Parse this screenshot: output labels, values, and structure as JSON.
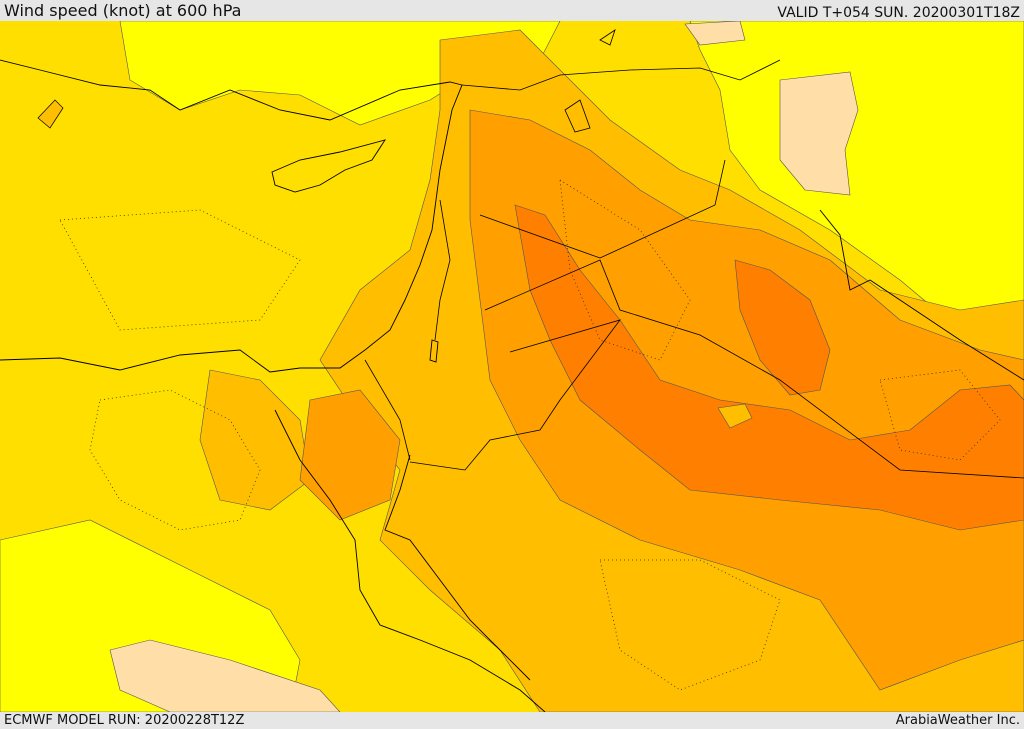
{
  "header": {
    "title": "Wind speed (knot) at 600 hPa",
    "valid": "VALID T+054 SUN. 20200301T18Z"
  },
  "footer": {
    "model_run": "ECMWF MODEL RUN: 20200228T12Z",
    "credit": "ArabiaWeather Inc."
  },
  "colors": {
    "level_lowest": "#ffdea8",
    "level_1": "#ffff00",
    "level_2": "#ffdf00",
    "level_3": "#ffbf00",
    "level_4": "#ff9f00",
    "level_5": "#ff7f00",
    "border": "#000000"
  }
}
